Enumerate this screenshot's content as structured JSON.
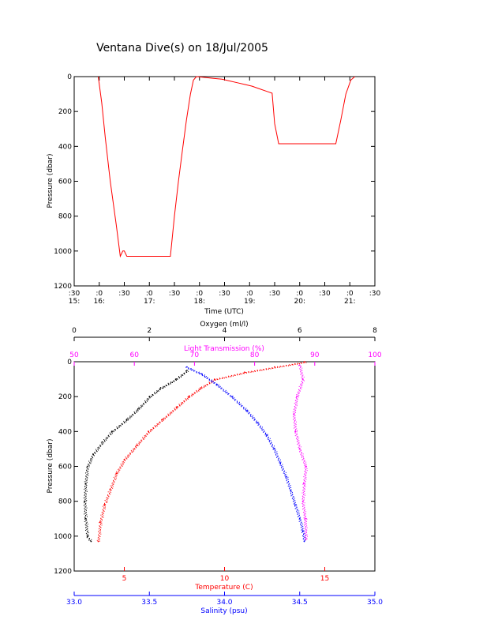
{
  "page_title": "Ventana Dive(s) on 18/Jul/2005",
  "colors": {
    "axis": "#000000",
    "depth_line": "#ff0000",
    "oxygen": "#000000",
    "transmission": "#ff00ff",
    "temperature": "#ff0000",
    "salinity": "#0000ff"
  },
  "chart_data": [
    {
      "type": "line",
      "title": "Ventana Dive(s) on 18/Jul/2005",
      "xlabel": "Time (UTC)",
      "ylabel": "Pressure (dbar)",
      "x_ticks_minute": [
        ":30",
        ":0",
        ":30",
        ":0",
        ":30",
        ":0",
        ":30",
        ":0",
        ":30",
        ":0",
        ":30",
        ":0",
        ":30"
      ],
      "x_ticks_hour": [
        "15:",
        "16:",
        "",
        "17:",
        "",
        "18:",
        "",
        "19:",
        "",
        "20:",
        "",
        "21:",
        ""
      ],
      "x_unit": "hours UTC",
      "xlim": [
        15.5,
        21.5
      ],
      "ylim": [
        1200,
        0
      ],
      "y_ticks": [
        0,
        200,
        400,
        600,
        800,
        1000,
        1200
      ],
      "series": [
        {
          "x": [
            15.98,
            16.05,
            16.12,
            16.22,
            16.34,
            16.42,
            16.47,
            16.5,
            16.55,
            16.62,
            16.7,
            16.8,
            16.9,
            17.0,
            17.1,
            17.2,
            17.3,
            17.42,
            17.5,
            17.58,
            17.66,
            17.74,
            17.82,
            17.88,
            17.94,
            18.12,
            18.28,
            18.45,
            18.6,
            18.75,
            18.9,
            19.05,
            19.2,
            19.35,
            19.45,
            19.5,
            19.58,
            19.75,
            19.9,
            20.05,
            20.2,
            20.35,
            20.5,
            20.62,
            20.72,
            20.82,
            20.92,
            21.02,
            21.1
          ],
          "y": [
            0,
            150,
            350,
            600,
            850,
            1030,
            1000,
            1000,
            1030,
            1030,
            1030,
            1030,
            1030,
            1030,
            1030,
            1030,
            1030,
            1030,
            800,
            600,
            420,
            250,
            100,
            20,
            0,
            5,
            10,
            15,
            25,
            35,
            45,
            55,
            70,
            85,
            95,
            270,
            385,
            385,
            385,
            385,
            385,
            385,
            385,
            385,
            385,
            250,
            100,
            20,
            0
          ]
        }
      ]
    },
    {
      "type": "scatter",
      "ylabel": "Pressure (dbar)",
      "ylim": [
        1200,
        0
      ],
      "y_ticks": [
        0,
        200,
        400,
        600,
        800,
        1000,
        1200
      ],
      "axes": [
        {
          "label": "Oxygen (ml/l)",
          "position": "top-outer",
          "range": [
            0,
            8
          ],
          "ticks": [
            0,
            2,
            4,
            6,
            8
          ]
        },
        {
          "label": "Light Transmission (%)",
          "position": "top-inner",
          "range": [
            50,
            100
          ],
          "ticks": [
            50,
            60,
            70,
            80,
            90,
            100
          ]
        },
        {
          "label": "Temperature (C)",
          "position": "bottom-inner",
          "range": [
            2.5,
            17.5
          ],
          "ticks": [
            5,
            10,
            15
          ]
        },
        {
          "label": "Salinity (psu)",
          "position": "bottom-outer",
          "range": [
            33.0,
            35.0
          ],
          "ticks": [
            "33.0",
            "33.5",
            "34.0",
            "34.5",
            "35.0"
          ]
        }
      ],
      "series": [
        {
          "axis": "Oxygen (ml/l)",
          "x": [
            3.0,
            2.7,
            2.3,
            2.0,
            1.7,
            1.4,
            1.0,
            0.75,
            0.5,
            0.35,
            0.3,
            0.28,
            0.3,
            0.35,
            0.45
          ],
          "y": [
            50,
            100,
            150,
            200,
            270,
            330,
            400,
            460,
            530,
            600,
            700,
            800,
            900,
            1000,
            1030
          ]
        },
        {
          "axis": "Light Transmission (%)",
          "x": [
            87.5,
            88.0,
            87.0,
            86.5,
            86.8,
            87.5,
            88.5,
            88.2,
            88.0,
            88.4,
            88.5
          ],
          "y": [
            20,
            100,
            200,
            300,
            400,
            500,
            600,
            700,
            800,
            900,
            1020
          ]
        },
        {
          "axis": "Temperature (C)",
          "x": [
            14.0,
            12.5,
            11.0,
            9.5,
            8.8,
            8.2,
            7.6,
            6.9,
            6.2,
            5.6,
            5.0,
            4.6,
            4.3,
            4.0,
            3.8,
            3.7
          ],
          "y": [
            0,
            30,
            60,
            100,
            150,
            200,
            260,
            330,
            400,
            480,
            560,
            640,
            730,
            820,
            920,
            1030
          ]
        },
        {
          "axis": "Salinity (psu)",
          "x": [
            33.75,
            33.85,
            33.95,
            34.05,
            34.15,
            34.22,
            34.28,
            34.33,
            34.37,
            34.41,
            34.44,
            34.47,
            34.5,
            34.52,
            34.53
          ],
          "y": [
            30,
            70,
            130,
            200,
            280,
            350,
            420,
            500,
            580,
            660,
            740,
            820,
            900,
            970,
            1030
          ]
        }
      ]
    }
  ]
}
